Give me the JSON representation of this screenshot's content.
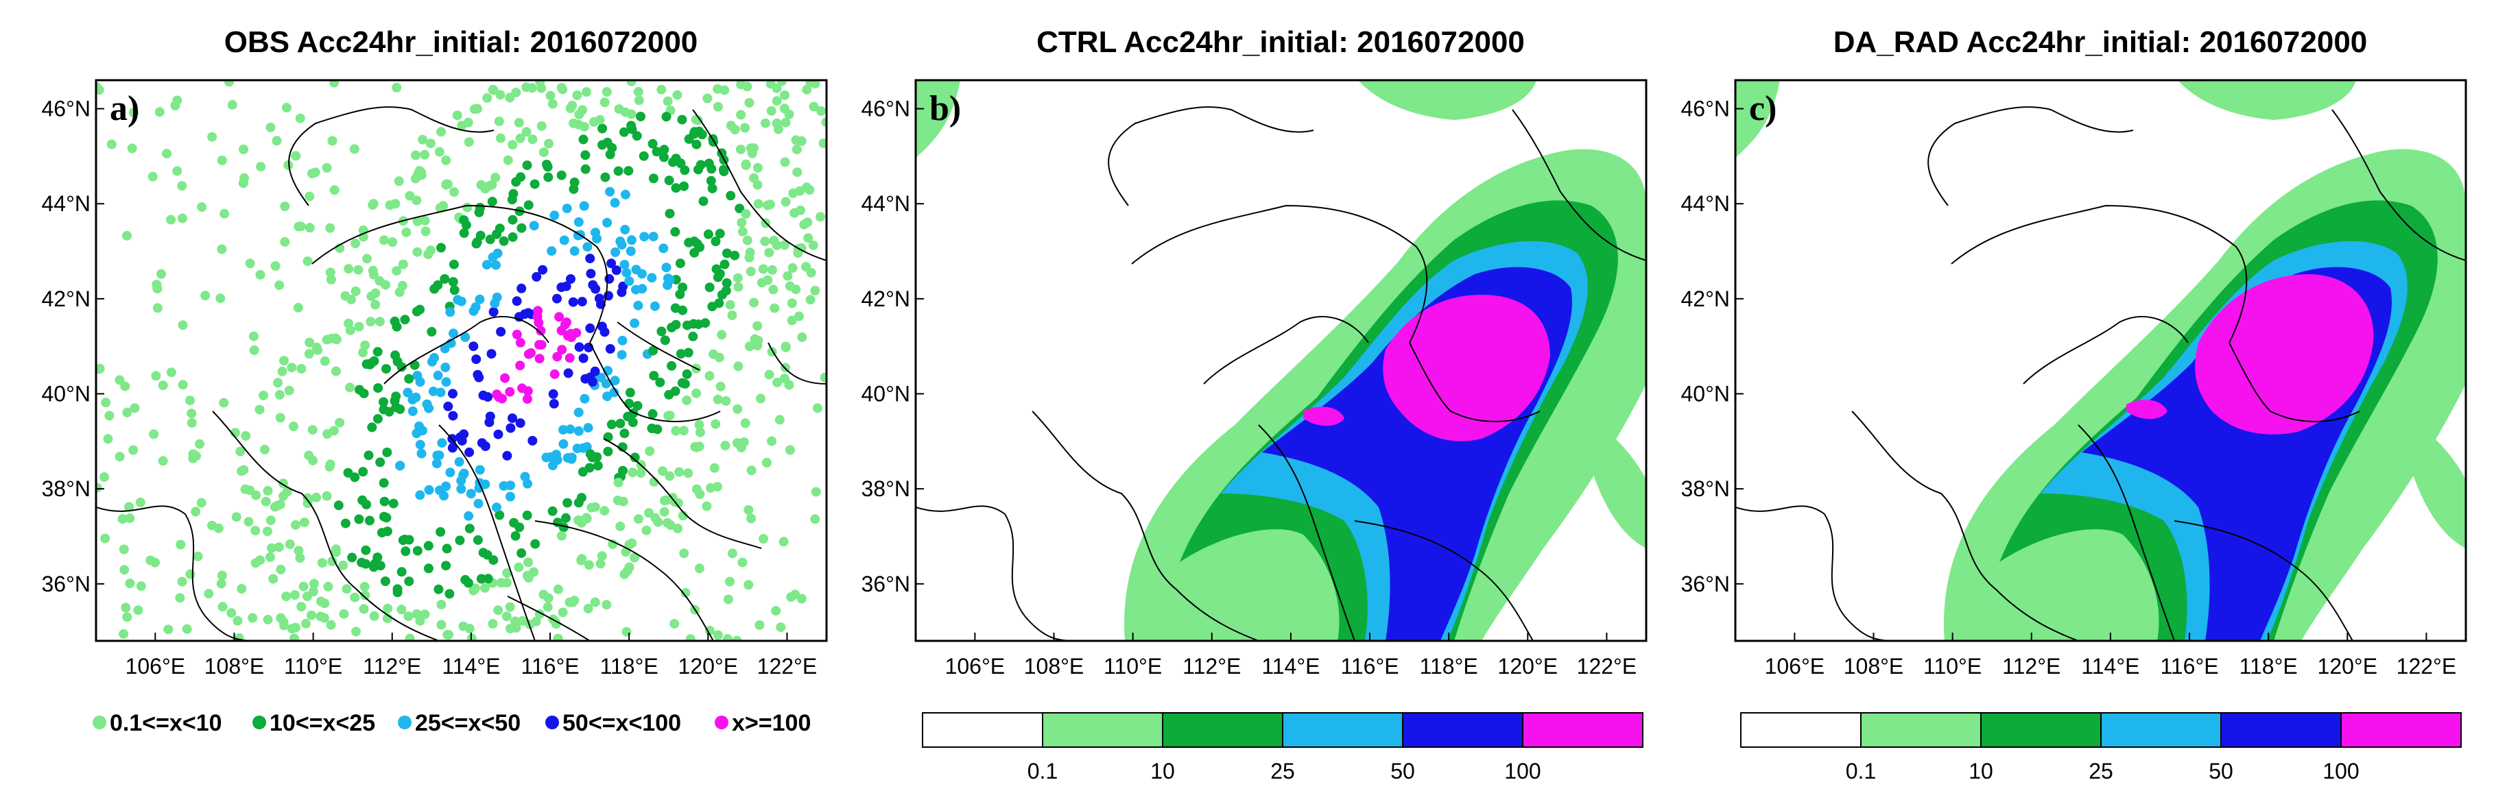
{
  "colors": {
    "c1": "#7ee88a",
    "c2": "#0cab3a",
    "c3": "#1fb6ee",
    "c4": "#1515ea",
    "c5": "#f512ee",
    "none": "#ffffff"
  },
  "panels": [
    {
      "id": "a",
      "title": "OBS Acc24hr_initial: 2016072000",
      "label": "a)"
    },
    {
      "id": "b",
      "title": "CTRL Acc24hr_initial: 2016072000",
      "label": "b)"
    },
    {
      "id": "c",
      "title": "DA_RAD Acc24hr_initial: 2016072000",
      "label": "c)"
    }
  ],
  "axes": {
    "lat_labels": [
      "46°N",
      "44°N",
      "42°N",
      "40°N",
      "38°N",
      "36°N"
    ],
    "lon_labels": [
      "106°E",
      "108°E",
      "110°E",
      "112°E",
      "114°E",
      "116°E",
      "118°E",
      "120°E",
      "122°E"
    ],
    "lat_values": [
      46,
      44,
      42,
      40,
      38,
      36
    ],
    "lon_values": [
      106,
      108,
      110,
      112,
      114,
      116,
      118,
      120,
      122
    ],
    "lat_range": [
      34.8,
      46.6
    ],
    "lon_range": [
      104.5,
      123
    ]
  },
  "obs_legend": [
    "0.1<=x<10",
    "10<=x<25",
    "25<=x<50",
    "50<=x<100",
    "x>=100"
  ],
  "colorbar": {
    "tick_labels": [
      "0.1",
      "10",
      "25",
      "50",
      "100"
    ]
  }
}
